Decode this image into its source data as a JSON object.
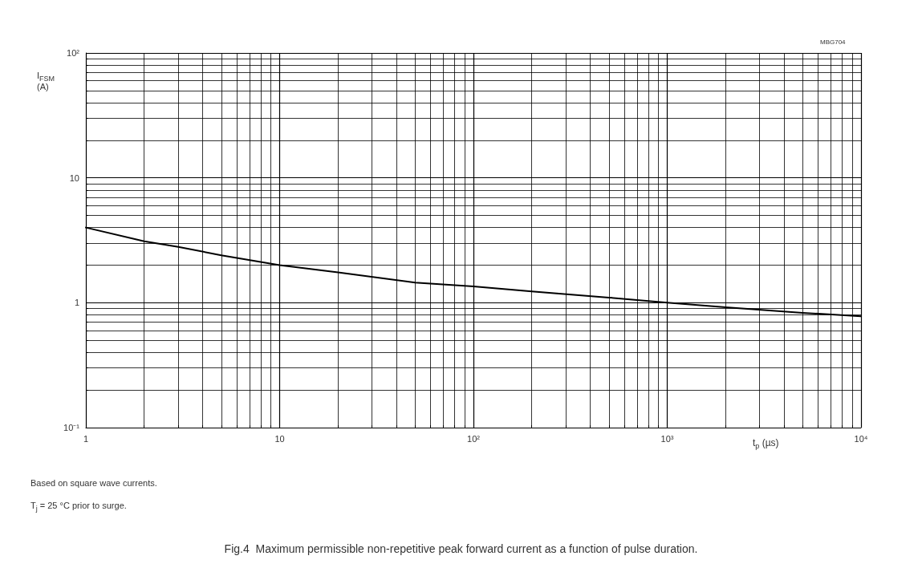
{
  "chart_data": {
    "type": "line",
    "title": "Fig.4  Maximum permissible non-repetitive peak forward current as a function of pulse duration.",
    "xlabel": "t$_{p}$ (µs)",
    "ylabel": "I$_{FSM}$\n(A)",
    "x": [
      1,
      2,
      3,
      5,
      10,
      20,
      50,
      100,
      200,
      500,
      1000,
      2000,
      5000,
      10000
    ],
    "series": [
      {
        "color": "#000000",
        "values": [
          4.0,
          3.1,
          2.8,
          2.4,
          2.0,
          1.75,
          1.45,
          1.35,
          1.23,
          1.1,
          1.0,
          0.92,
          0.83,
          0.78
        ]
      }
    ],
    "log": "xy",
    "grid": true,
    "marker": "none",
    "line_style": "solid",
    "xlim": [
      1,
      10000
    ],
    "xticks": [
      1,
      10,
      {
        "value": 100,
        "label": "10²"
      },
      {
        "value": 1000,
        "label": "10³"
      },
      {
        "value": 10000,
        "label": "10⁴"
      }
    ],
    "ylim": [
      0.1,
      100
    ],
    "yticks": [
      {
        "value": 0.1,
        "label": "10⁻¹"
      },
      1,
      10,
      {
        "value": 100,
        "label": "10²"
      }
    ],
    "annotations": [
      "MBG704",
      "Based on square wave currents.",
      "T$_{j}$ = 25 °C prior to surge."
    ]
  }
}
